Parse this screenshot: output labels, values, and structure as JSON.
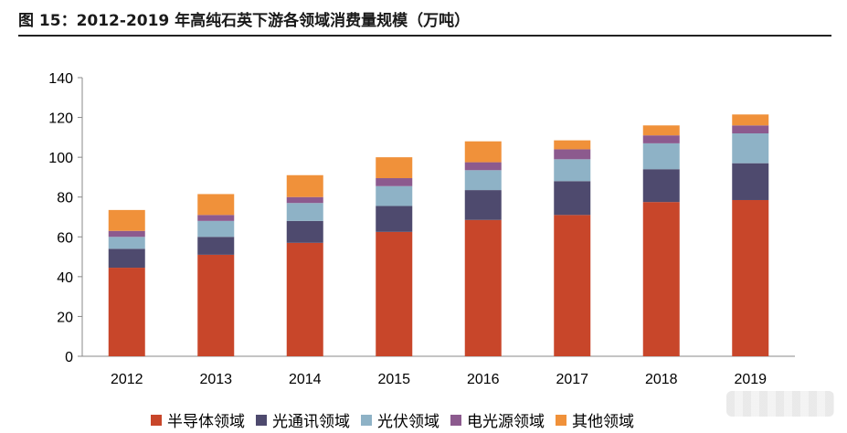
{
  "title": "图 15：2012-2019 年高纯石英下游各领域消费量规模（万吨）",
  "chart_data": {
    "type": "bar",
    "stacked": true,
    "title": "图 15：2012-2019 年高纯石英下游各领域消费量规模（万吨）",
    "categories": [
      "2012",
      "2013",
      "2014",
      "2015",
      "2016",
      "2017",
      "2018",
      "2019"
    ],
    "ylim": [
      0,
      140
    ],
    "yticks": [
      0,
      20,
      40,
      60,
      80,
      100,
      120,
      140
    ],
    "grid": false,
    "legend_position": "bottom",
    "series": [
      {
        "name": "半导体领域",
        "color": "#C8462A",
        "values": [
          44.5,
          51,
          57,
          62.5,
          68.5,
          71,
          77.5,
          78.5
        ]
      },
      {
        "name": "光通讯领域",
        "color": "#4E4A6E",
        "values": [
          9.5,
          9,
          11,
          13,
          15,
          17,
          16.5,
          18.5
        ]
      },
      {
        "name": "光伏领域",
        "color": "#8EB2C6",
        "values": [
          6,
          8,
          9,
          10,
          10,
          11,
          13,
          15
        ]
      },
      {
        "name": "电光源领域",
        "color": "#8C5A8E",
        "values": [
          3,
          3,
          3,
          4,
          4,
          5,
          4,
          4
        ]
      },
      {
        "name": "其他领域",
        "color": "#F0913A",
        "values": [
          10.5,
          10.5,
          11,
          10.5,
          10.5,
          4.5,
          5,
          5.5
        ]
      }
    ]
  }
}
